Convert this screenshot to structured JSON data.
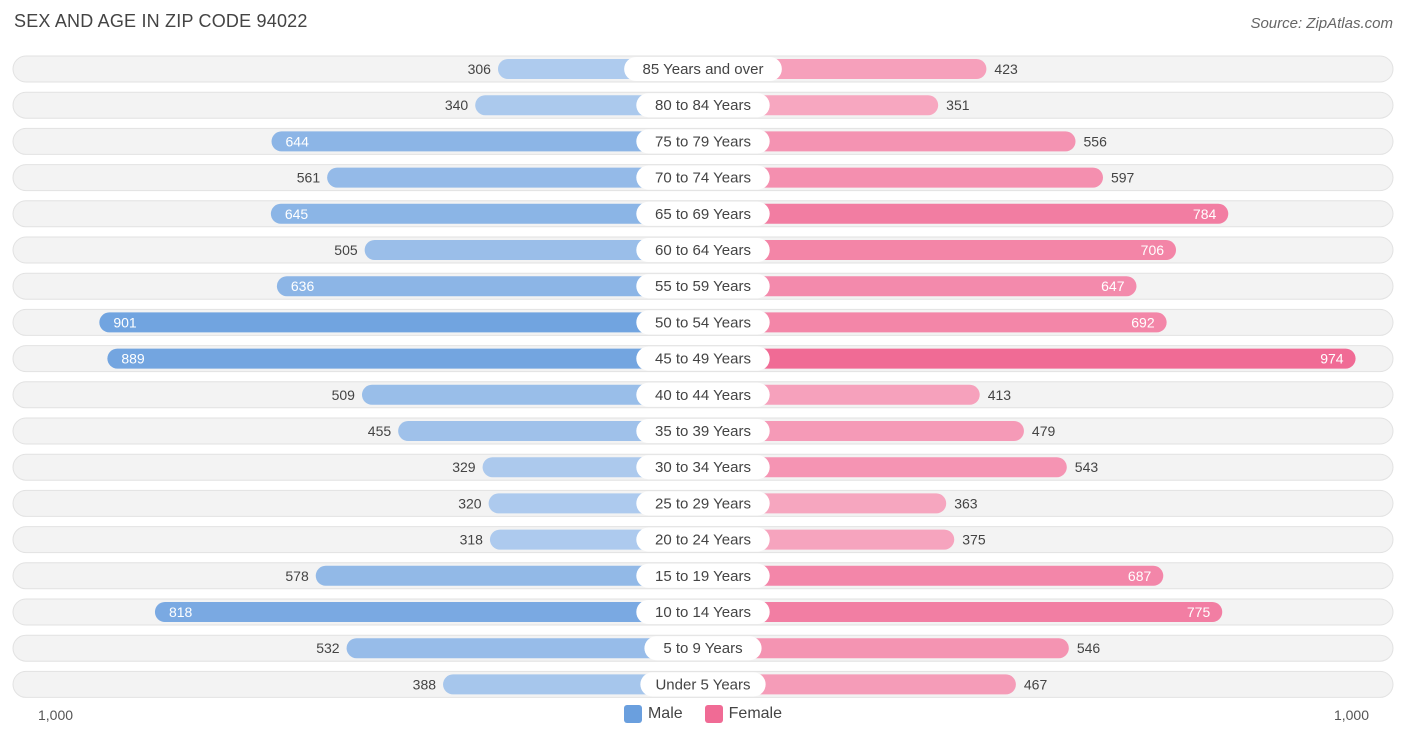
{
  "title": "SEX AND AGE IN ZIP CODE 94022",
  "source": "Source: ZipAtlas.com",
  "colors": {
    "male": "#6a9fde",
    "female": "#f06b95",
    "male_light": "#aecbee",
    "female_light": "#f7abc3"
  },
  "legend": {
    "male": "Male",
    "female": "Female"
  },
  "axis": {
    "left_label": "1,000",
    "right_label": "1,000"
  },
  "chart_data": {
    "type": "bar",
    "orientation": "horizontal-diverging",
    "title": "SEX AND AGE IN ZIP CODE 94022",
    "xlim": [
      -1000,
      1000
    ],
    "legend_position": "bottom-center",
    "categories": [
      "85 Years and over",
      "80 to 84 Years",
      "75 to 79 Years",
      "70 to 74 Years",
      "65 to 69 Years",
      "60 to 64 Years",
      "55 to 59 Years",
      "50 to 54 Years",
      "45 to 49 Years",
      "40 to 44 Years",
      "35 to 39 Years",
      "30 to 34 Years",
      "25 to 29 Years",
      "20 to 24 Years",
      "15 to 19 Years",
      "10 to 14 Years",
      "5 to 9 Years",
      "Under 5 Years"
    ],
    "series": [
      {
        "name": "Male",
        "values": [
          306,
          340,
          644,
          561,
          645,
          505,
          636,
          901,
          889,
          509,
          455,
          329,
          320,
          318,
          578,
          818,
          532,
          388
        ]
      },
      {
        "name": "Female",
        "values": [
          423,
          351,
          556,
          597,
          784,
          706,
          647,
          692,
          974,
          413,
          479,
          543,
          363,
          375,
          687,
          775,
          546,
          467
        ]
      }
    ]
  }
}
